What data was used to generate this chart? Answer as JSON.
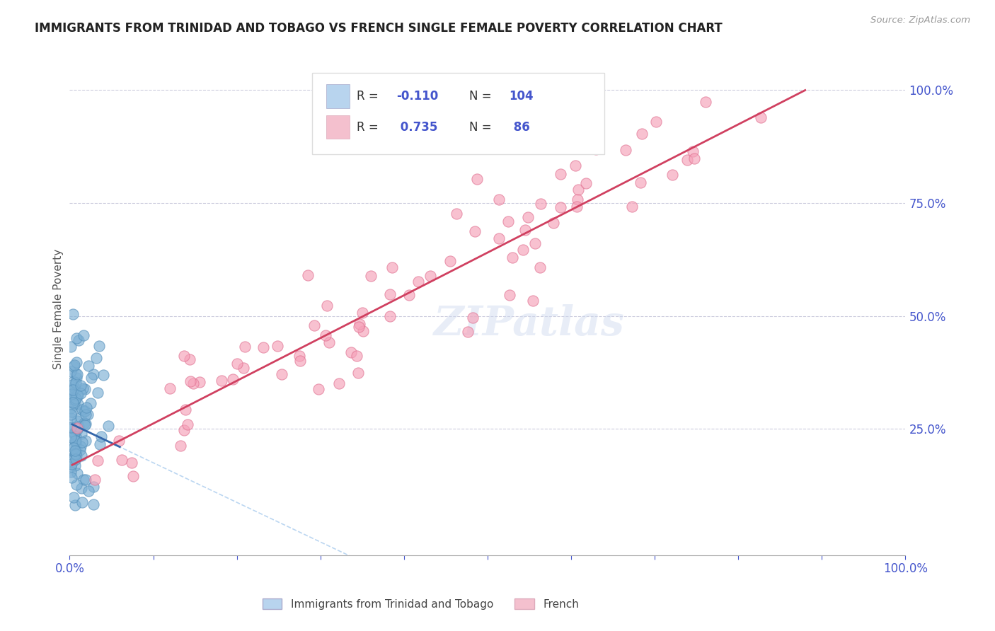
{
  "title": "IMMIGRANTS FROM TRINIDAD AND TOBAGO VS FRENCH SINGLE FEMALE POVERTY CORRELATION CHART",
  "source_text": "Source: ZipAtlas.com",
  "ylabel": "Single Female Poverty",
  "x_tick_labels": [
    "0.0%",
    "",
    "",
    "",
    "",
    "",
    "",
    "",
    "",
    "",
    "100.0%"
  ],
  "y_tick_labels_right": [
    "25.0%",
    "50.0%",
    "75.0%",
    "100.0%"
  ],
  "legend_entries": [
    {
      "label": "Immigrants from Trinidad and Tobago",
      "R": -0.11,
      "N": 104,
      "color": "#b8d4ee",
      "dot_color": "#7bafd4",
      "dot_edge": "#5590bb"
    },
    {
      "label": "French",
      "R": 0.735,
      "N": 86,
      "color": "#f4c0ce",
      "dot_color": "#f5a0b8",
      "dot_edge": "#e07090"
    }
  ],
  "watermark": "ZIPatlas",
  "bg_color": "#ffffff",
  "plot_bg_color": "#ffffff",
  "title_color": "#222222",
  "axis_label_color": "#4455cc",
  "trendline1_color": "#3366aa",
  "trendline2_color": "#d04060",
  "trendline1_dash_color": "#aaccee"
}
